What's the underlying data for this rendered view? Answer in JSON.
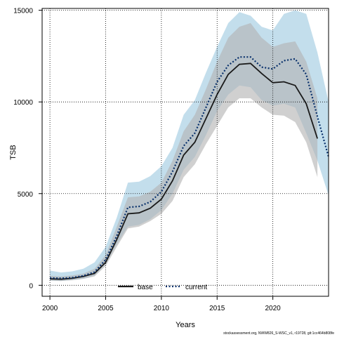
{
  "chart_data": {
    "type": "line",
    "xlabel": "Years",
    "ylabel": "TSB",
    "xlim": [
      1999.3,
      2025
    ],
    "ylim": [
      -600,
      15100
    ],
    "x_ticks": [
      2000,
      2005,
      2010,
      2015,
      2020
    ],
    "y_ticks": [
      0,
      5000,
      10000,
      15000
    ],
    "grid": true,
    "legend_position": "bottom-center",
    "x": [
      2000,
      2001,
      2002,
      2003,
      2004,
      2005,
      2006,
      2007,
      2008,
      2009,
      2010,
      2011,
      2012,
      2013,
      2014,
      2015,
      2016,
      2017,
      2018,
      2019,
      2020,
      2021,
      2022,
      2023,
      2024,
      2025
    ],
    "series": [
      {
        "name": "base",
        "color": "#1a1a1a",
        "line_style": "solid",
        "band_color": "#b3b3b3",
        "values": [
          350,
          330,
          380,
          480,
          650,
          1250,
          2500,
          3900,
          3950,
          4200,
          4700,
          5700,
          7100,
          7800,
          9100,
          10400,
          11500,
          12050,
          12100,
          11550,
          11050,
          11100,
          10900,
          9900,
          8000,
          null
        ],
        "lower": [
          250,
          230,
          270,
          350,
          480,
          1050,
          2100,
          3100,
          3200,
          3500,
          3900,
          4600,
          5900,
          6600,
          7700,
          8700,
          9700,
          10200,
          10200,
          9700,
          9300,
          9250,
          8900,
          7800,
          5900,
          null
        ],
        "upper": [
          520,
          480,
          540,
          640,
          900,
          1650,
          3200,
          4800,
          4850,
          5100,
          5600,
          6800,
          8400,
          9300,
          10700,
          12200,
          13500,
          14100,
          14300,
          13500,
          13000,
          13200,
          13300,
          12200,
          10200,
          null
        ]
      },
      {
        "name": "current",
        "color": "#08306b",
        "line_style": "dotted",
        "band_color": "#9ecae1",
        "values": [
          400,
          380,
          420,
          520,
          720,
          1400,
          2700,
          4250,
          4300,
          4550,
          5100,
          6200,
          7600,
          8300,
          9700,
          11100,
          12000,
          12450,
          12450,
          11900,
          11800,
          12250,
          12350,
          11500,
          9200,
          7000
        ],
        "lower": [
          260,
          240,
          290,
          360,
          520,
          1150,
          2250,
          3200,
          3300,
          3600,
          4100,
          5000,
          6300,
          7000,
          8200,
          9500,
          10400,
          10900,
          10800,
          10100,
          9800,
          9900,
          9700,
          8300,
          6800,
          4900
        ],
        "upper": [
          800,
          700,
          760,
          900,
          1250,
          2100,
          3700,
          5600,
          5650,
          5950,
          6500,
          7500,
          9300,
          10100,
          11600,
          13000,
          14300,
          14900,
          14700,
          14100,
          13900,
          14800,
          15000,
          14800,
          12700,
          10000
        ]
      }
    ]
  },
  "footer_note": "stockassessment.org, NWW826_S-WSC_v1, r19728, git:1cc464b808fe"
}
